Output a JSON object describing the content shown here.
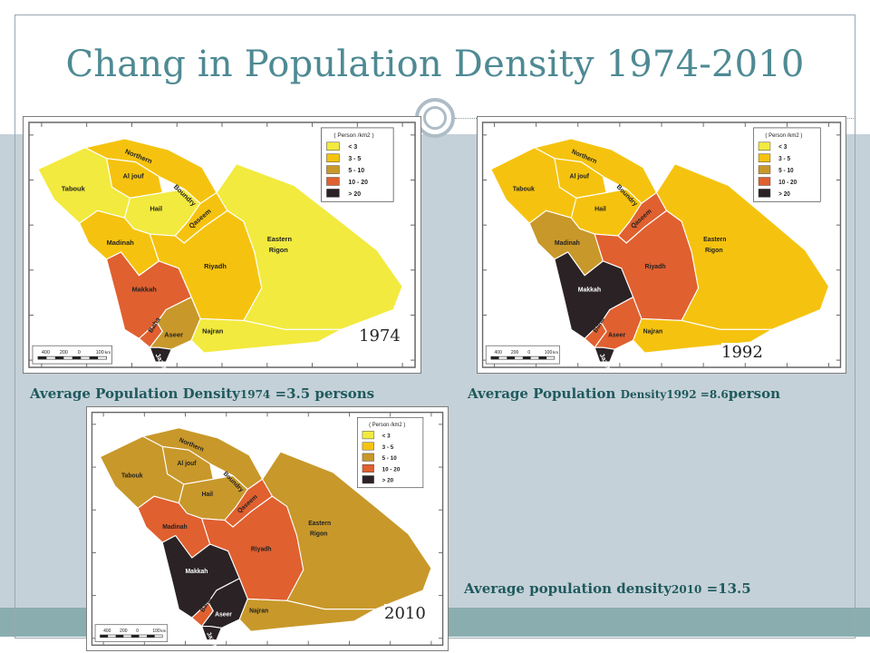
{
  "slide": {
    "title": "Chang in  Population Density 1974-2010"
  },
  "legend": {
    "unit": "( Person /km2 )",
    "classes": [
      {
        "label": "< 3",
        "color": "#f2ea3e"
      },
      {
        "label": "3 -  5",
        "color": "#f5c30f"
      },
      {
        "label": "5 - 10",
        "color": "#c8982a"
      },
      {
        "label": "10 - 20",
        "color": "#e06030"
      },
      {
        "label": "> 20",
        "color": "#2a2224"
      }
    ]
  },
  "regions": [
    "Northern Boundry",
    "Al jouf",
    "Tabouk",
    "Hail",
    "Qaseem",
    "Madinah",
    "Riyadh",
    "Eastern Rigon",
    "Makkah",
    "Baha",
    "Aseer",
    "Najran",
    "Jazan"
  ],
  "scale_bar": {
    "labels": [
      "400",
      "200",
      "0",
      "100"
    ],
    "unit": "km"
  },
  "maps": [
    {
      "year": "1974",
      "caption_main": "Average Population Density",
      "caption_small": "1974",
      "caption_rest": " =3.5 persons",
      "fills": {
        "northern": "#f5c30f",
        "aljouf": "#f5c30f",
        "tabouk": "#f2ea3e",
        "hail": "#f2ea3e",
        "qaseem": "#f5c30f",
        "madinah": "#f5c30f",
        "riyadh": "#f5c30f",
        "eastern": "#f2ea3e",
        "makkah": "#e06030",
        "baha": "#e06030",
        "aseer": "#c8982a",
        "najran": "#f2ea3e",
        "jazan": "#2a2224"
      }
    },
    {
      "year": "1992",
      "caption_main": "Average Population ",
      "caption_small": "Density1992 =8.6",
      "caption_rest": "person",
      "fills": {
        "northern": "#f5c30f",
        "aljouf": "#f5c30f",
        "tabouk": "#f5c30f",
        "hail": "#f5c30f",
        "qaseem": "#e06030",
        "madinah": "#c8982a",
        "riyadh": "#e06030",
        "eastern": "#f5c30f",
        "makkah": "#2a2224",
        "baha": "#e06030",
        "aseer": "#e06030",
        "najran": "#f5c30f",
        "jazan": "#2a2224"
      }
    },
    {
      "year": "2010",
      "caption_main": "Average population density",
      "caption_small": "2010",
      "caption_rest": " =13.5",
      "fills": {
        "northern": "#c8982a",
        "aljouf": "#c8982a",
        "tabouk": "#c8982a",
        "hail": "#c8982a",
        "qaseem": "#e06030",
        "madinah": "#e06030",
        "riyadh": "#e06030",
        "eastern": "#c8982a",
        "makkah": "#2a2224",
        "baha": "#e06030",
        "aseer": "#2a2224",
        "najran": "#c8982a",
        "jazan": "#2a2224"
      }
    }
  ]
}
